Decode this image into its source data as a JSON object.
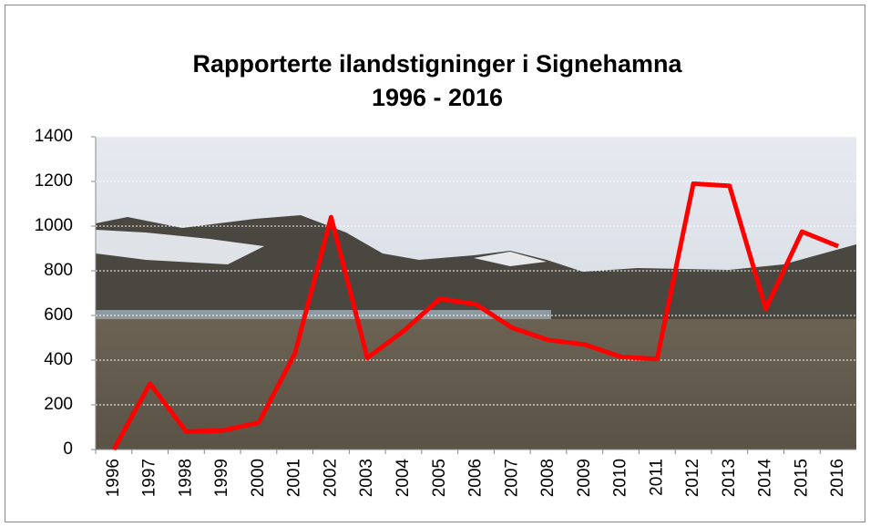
{
  "chart_data": {
    "type": "line",
    "title": [
      "Rapporterte ilandstigninger i Signehamna",
      "1996 - 2016"
    ],
    "categories": [
      "1996",
      "1997",
      "1998",
      "1999",
      "2000",
      "2001",
      "2002",
      "2003",
      "2004",
      "2005",
      "2006",
      "2007",
      "2008",
      "2009",
      "2010",
      "2011",
      "2012",
      "2013",
      "2014",
      "2015",
      "2016"
    ],
    "values": [
      0,
      295,
      80,
      85,
      120,
      430,
      1040,
      410,
      530,
      675,
      650,
      545,
      490,
      470,
      415,
      405,
      1190,
      1180,
      630,
      975,
      910
    ],
    "color": "#ff0000",
    "ylim": [
      0,
      1400
    ],
    "yticks": [
      0,
      200,
      400,
      600,
      800,
      1000,
      1200,
      1400
    ],
    "grid": true
  }
}
